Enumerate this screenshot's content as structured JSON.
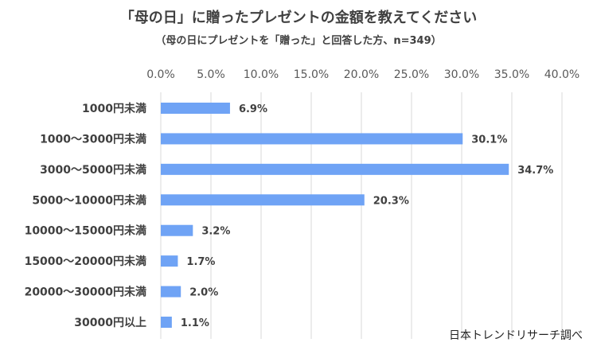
{
  "chart_data": {
    "type": "bar",
    "orientation": "horizontal",
    "title": "「母の日」に贈ったプレゼントの金額を教えてください",
    "subtitle": "（母の日にプレゼントを「贈った」と回答した方、n=349）",
    "categories": [
      "1000円未満",
      "1000～3000円未満",
      "3000～5000円未満",
      "5000～10000円未満",
      "10000～15000円未満",
      "15000～20000円未満",
      "20000～30000円未満",
      "30000円以上"
    ],
    "values": [
      6.9,
      30.1,
      34.7,
      20.3,
      3.2,
      1.7,
      2.0,
      1.1
    ],
    "data_labels": [
      "6.9%",
      "30.1%",
      "34.7%",
      "20.3%",
      "3.2%",
      "1.7%",
      "2.0%",
      "1.1%"
    ],
    "x_ticks": [
      "0.0%",
      "5.0%",
      "10.0%",
      "15.0%",
      "20.0%",
      "25.0%",
      "30.0%",
      "35.0%",
      "40.0%"
    ],
    "xlim": [
      0,
      40
    ],
    "grid": true,
    "axis_position": "top",
    "bar_color": "#6fa3f5",
    "grid_color": "#d9d9d9"
  },
  "source": "日本トレンドリサーチ調べ"
}
